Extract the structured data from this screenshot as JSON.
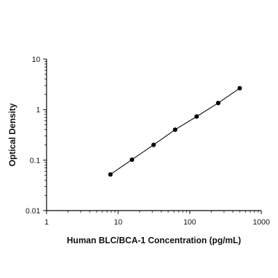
{
  "chart_data": {
    "type": "scatter",
    "title": "",
    "xlabel": "Human BLC/BCA-1 Concentration (pg/mL)",
    "ylabel": "Optical Density",
    "x_scale": "log",
    "y_scale": "log",
    "xlim": [
      1,
      1000
    ],
    "ylim": [
      0.01,
      10
    ],
    "x_ticks": [
      "1",
      "10",
      "100",
      "1000"
    ],
    "y_ticks": [
      "0.01",
      "0.1",
      "1",
      "10"
    ],
    "grid": false,
    "series": [
      {
        "x": [
          7.8,
          15.6,
          31.25,
          62.5,
          125,
          250,
          500
        ],
        "y": [
          0.052,
          0.102,
          0.2,
          0.4,
          0.73,
          1.35,
          2.65
        ],
        "fit_line": true,
        "color": "#000000"
      }
    ]
  }
}
